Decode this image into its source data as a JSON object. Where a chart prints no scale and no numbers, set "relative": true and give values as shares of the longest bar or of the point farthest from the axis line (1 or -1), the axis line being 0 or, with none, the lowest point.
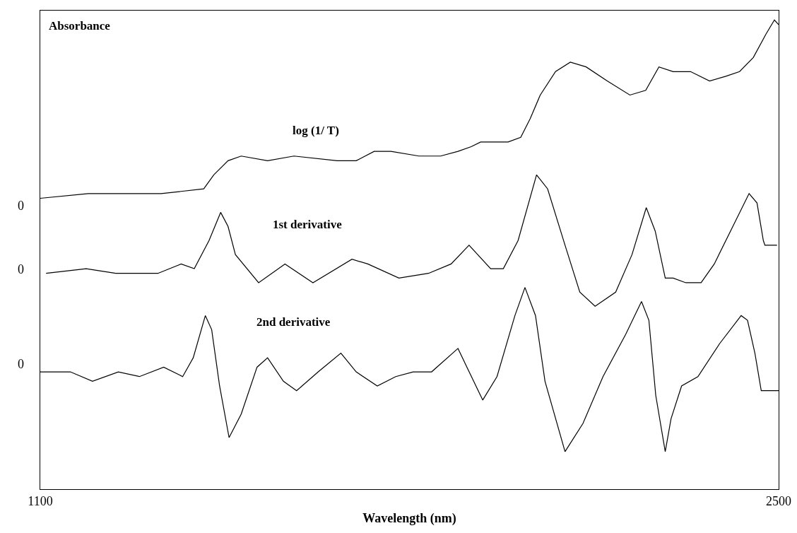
{
  "chart_data": {
    "type": "line",
    "relative": true,
    "xlabel": "Wavelength (nm)",
    "ylabel": "Absorbance",
    "xlim": [
      1100,
      2500
    ],
    "xticks": [
      1100,
      2500
    ],
    "legend": false,
    "grid": false,
    "marker": "none",
    "line_style": "solid",
    "annotations": [
      "0",
      "0",
      "0"
    ],
    "series": [
      {
        "name": "log (1/ T)",
        "color": "#000000",
        "x": [
          1100,
          1191,
          1329,
          1410,
          1429,
          1456,
          1481,
          1531,
          1581,
          1663,
          1699,
          1733,
          1765,
          1818,
          1859,
          1892,
          1917,
          1935,
          1987,
          2011,
          2029,
          2048,
          2077,
          2105,
          2135,
          2175,
          2218,
          2248,
          2273,
          2300,
          2333,
          2369,
          2400,
          2426,
          2452,
          2476,
          2492,
          2500
        ],
        "values": [
          0.62,
          0.63,
          0.63,
          0.64,
          0.67,
          0.7,
          0.71,
          0.7,
          0.71,
          0.7,
          0.7,
          0.72,
          0.72,
          0.71,
          0.71,
          0.72,
          0.73,
          0.74,
          0.74,
          0.75,
          0.79,
          0.84,
          0.89,
          0.91,
          0.9,
          0.87,
          0.84,
          0.85,
          0.9,
          0.89,
          0.89,
          0.87,
          0.88,
          0.89,
          0.92,
          0.97,
          1.0,
          0.99
        ]
      },
      {
        "name": "1st derivative",
        "color": "#000000",
        "x": [
          1111,
          1187,
          1243,
          1323,
          1367,
          1392,
          1420,
          1442,
          1456,
          1470,
          1514,
          1564,
          1617,
          1691,
          1721,
          1780,
          1836,
          1879,
          1913,
          1954,
          1978,
          2006,
          2041,
          2062,
          2095,
          2123,
          2152,
          2191,
          2222,
          2249,
          2266,
          2285,
          2300,
          2324,
          2353,
          2378,
          2444,
          2459,
          2471,
          2474,
          2497
        ],
        "values": [
          0.46,
          0.47,
          0.46,
          0.46,
          0.48,
          0.47,
          0.53,
          0.59,
          0.56,
          0.5,
          0.44,
          0.48,
          0.44,
          0.49,
          0.48,
          0.45,
          0.46,
          0.48,
          0.52,
          0.47,
          0.47,
          0.53,
          0.67,
          0.64,
          0.52,
          0.42,
          0.39,
          0.42,
          0.5,
          0.6,
          0.55,
          0.45,
          0.45,
          0.44,
          0.44,
          0.48,
          0.63,
          0.61,
          0.53,
          0.52,
          0.52
        ]
      },
      {
        "name": "2nd derivative",
        "color": "#000000",
        "x": [
          1100,
          1157,
          1199,
          1248,
          1288,
          1334,
          1370,
          1390,
          1413,
          1425,
          1440,
          1458,
          1481,
          1511,
          1531,
          1561,
          1586,
          1627,
          1670,
          1699,
          1739,
          1774,
          1807,
          1842,
          1892,
          1909,
          1939,
          1966,
          2000,
          2019,
          2039,
          2057,
          2095,
          2129,
          2167,
          2210,
          2240,
          2254,
          2267,
          2285,
          2296,
          2316,
          2347,
          2388,
          2429,
          2441,
          2455,
          2467,
          2500
        ],
        "values": [
          0.25,
          0.25,
          0.23,
          0.25,
          0.24,
          0.26,
          0.24,
          0.28,
          0.37,
          0.34,
          0.22,
          0.11,
          0.16,
          0.26,
          0.28,
          0.23,
          0.21,
          0.25,
          0.29,
          0.25,
          0.22,
          0.24,
          0.25,
          0.25,
          0.3,
          0.26,
          0.19,
          0.24,
          0.37,
          0.43,
          0.37,
          0.23,
          0.08,
          0.14,
          0.24,
          0.33,
          0.4,
          0.36,
          0.2,
          0.08,
          0.15,
          0.22,
          0.24,
          0.31,
          0.37,
          0.36,
          0.29,
          0.21,
          0.21
        ]
      }
    ]
  }
}
